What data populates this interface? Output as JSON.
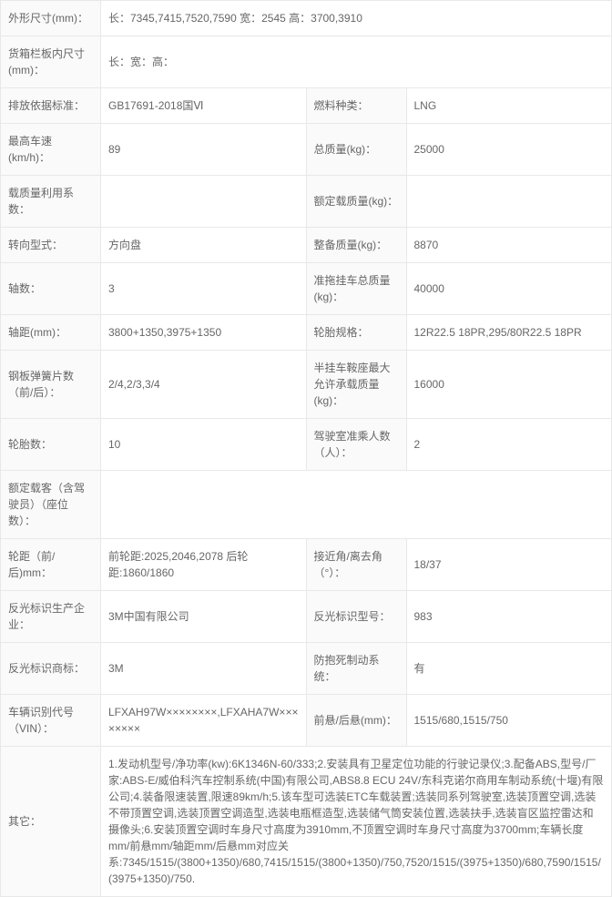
{
  "rows": [
    {
      "type": "pair2",
      "l1": "外形尺寸(mm)：",
      "v1": "长：7345,7415,7520,7590 宽：2545 高：3700,3910",
      "l2": "",
      "v2": "",
      "span": true
    },
    {
      "type": "pair2",
      "l1": "货箱栏板内尺寸(mm)：",
      "v1": "长：宽：高：",
      "l2": "",
      "v2": "",
      "span": true
    },
    {
      "type": "pair2",
      "l1": "排放依据标准：",
      "v1": "GB17691-2018国Ⅵ",
      "l2": "燃料种类：",
      "v2": "LNG"
    },
    {
      "type": "pair2",
      "l1": "最高车速(km/h)：",
      "v1": "89",
      "l2": "总质量(kg)：",
      "v2": "25000"
    },
    {
      "type": "pair2",
      "l1": "载质量利用系数：",
      "v1": "",
      "l2": "额定载质量(kg)：",
      "v2": ""
    },
    {
      "type": "pair2",
      "l1": "转向型式：",
      "v1": "方向盘",
      "l2": "整备质量(kg)：",
      "v2": "8870"
    },
    {
      "type": "pair2",
      "l1": "轴数：",
      "v1": "3",
      "l2": "准拖挂车总质量(kg)：",
      "v2": "40000"
    },
    {
      "type": "pair2",
      "l1": "轴距(mm)：",
      "v1": "3800+1350,3975+1350",
      "l2": "轮胎规格：",
      "v2": "12R22.5 18PR,295/80R22.5 18PR"
    },
    {
      "type": "pair2",
      "l1": "钢板弹簧片数（前/后）：",
      "v1": "2/4,2/3,3/4",
      "l2": "半挂车鞍座最大允许承载质量(kg)：",
      "v2": "16000"
    },
    {
      "type": "pair2",
      "l1": "轮胎数：",
      "v1": "10",
      "l2": "驾驶室准乘人数（人）：",
      "v2": "2"
    },
    {
      "type": "pair2",
      "l1": "额定载客（含驾驶员）（座位数）：",
      "v1": "",
      "l2": "",
      "v2": "",
      "span": true
    },
    {
      "type": "pair2",
      "l1": "轮距（前/后)mm：",
      "v1": "前轮距:2025,2046,2078 后轮距:1860/1860",
      "l2": "接近角/离去角（°）：",
      "v2": "18/37"
    },
    {
      "type": "pair2",
      "l1": "反光标识生产企业：",
      "v1": "3M中国有限公司",
      "l2": "反光标识型号：",
      "v2": "983"
    },
    {
      "type": "pair2",
      "l1": "反光标识商标：",
      "v1": "3M",
      "l2": "防抱死制动系统：",
      "v2": "有"
    },
    {
      "type": "pair2",
      "l1": "车辆识别代号（VIN）：",
      "v1": "LFXAH97W××××××××,LFXAHA7W××××××××",
      "l2": "前悬/后悬(mm)：",
      "v2": "1515/680,1515/750"
    },
    {
      "type": "pair2",
      "l1": "其它：",
      "v1": "1.发动机型号/净功率(kw):6K1346N-60/333;2.安装具有卫星定位功能的行驶记录仪;3.配备ABS,型号/厂家:ABS-E/威伯科汽车控制系统(中国)有限公司,ABS8.8 ECU 24V/东科克诺尔商用车制动系统(十堰)有限公司;4.装备限速装置,限速89km/h;5.该车型可选装ETC车载装置;选装同系列驾驶室,选装顶置空调,选装不带顶置空调,选装顶置空调造型,选装电瓶框造型,选装储气筒安装位置,选装扶手,选装盲区监控雷达和摄像头;6.安装顶置空调时车身尺寸高度为3910mm,不顶置空调时车身尺寸高度为3700mm;车辆长度mm/前悬mm/轴距mm/后悬mm对应关系:7345/1515/(3800+1350)/680,7415/1515/(3800+1350)/750,7520/1515/(3975+1350)/680,7590/1515/(3975+1350)/750.",
      "l2": "",
      "v2": "",
      "span": true
    }
  ]
}
